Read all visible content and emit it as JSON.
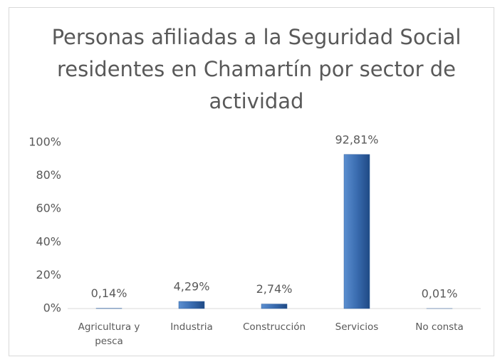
{
  "chart_data": {
    "type": "bar",
    "title": "Personas afiliadas a la Seguridad Social residentes en Chamartín por sector de actividad",
    "categories": [
      "Agricultura y pesca",
      "Industria",
      "Construcción",
      "Servicios",
      "No consta"
    ],
    "values": [
      0.14,
      4.29,
      2.74,
      92.81,
      0.01
    ],
    "value_labels": [
      "0,14%",
      "4,29%",
      "2,74%",
      "92,81%",
      "0,01%"
    ],
    "color": "#2f5e9c",
    "ylim": [
      0,
      100
    ],
    "yticks": [
      {
        "value": 0,
        "label": "0%"
      },
      {
        "value": 20,
        "label": "20%"
      },
      {
        "value": 40,
        "label": "40%"
      },
      {
        "value": 60,
        "label": "60%"
      },
      {
        "value": 80,
        "label": "80%"
      },
      {
        "value": 100,
        "label": "100%"
      }
    ],
    "grid": false
  }
}
